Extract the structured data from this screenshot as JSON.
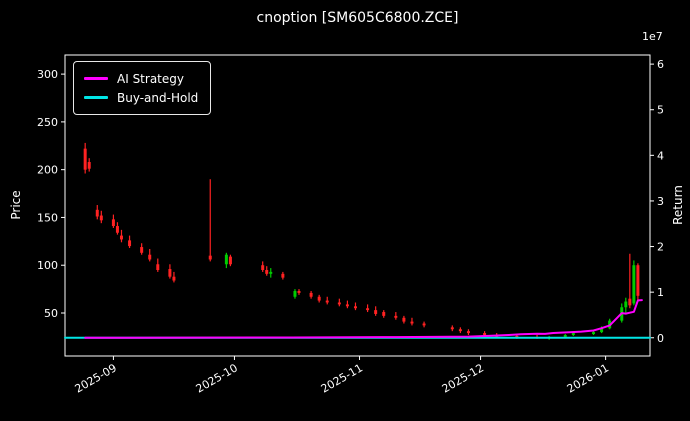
{
  "window": {
    "title": "cnoption [SM605C6800.ZCE]"
  },
  "legend": {
    "items": [
      {
        "label": "AI Strategy",
        "color": "#ff00ff"
      },
      {
        "label": "Buy-and-Hold",
        "color": "#00e5e5"
      }
    ]
  },
  "chart_data": {
    "type": "candlestick",
    "title": "cnoption [SM605C6800.ZCE]",
    "background": "#000000",
    "text_color": "#ffffff",
    "ylabel_left": "Price",
    "ylabel_right": "Return",
    "right_axis_offset_text": "1e7",
    "grid": false,
    "legend_position": "upper-left",
    "x_range": [
      "2025-08-20",
      "2026-01-12"
    ],
    "y_left_range": [
      5,
      320
    ],
    "y_right_range": [
      -4000000,
      62000000
    ],
    "y_left_ticks": [
      50,
      100,
      150,
      200,
      250,
      300
    ],
    "y_right_ticks": [
      0,
      1,
      2,
      3,
      4,
      5,
      6
    ],
    "y_right_tick_scale": 10000000,
    "x_ticks": [
      {
        "label": "2025-09",
        "date": "2025-09-01"
      },
      {
        "label": "2025-10",
        "date": "2025-10-01"
      },
      {
        "label": "2025-11",
        "date": "2025-11-01"
      },
      {
        "label": "2025-12",
        "date": "2025-12-01"
      },
      {
        "label": "2026-01",
        "date": "2026-01-01"
      }
    ],
    "colors": {
      "up": "#00cc00",
      "down": "#ff2222",
      "ai": "#ff00ff",
      "bh": "#00e5e5"
    },
    "candles": [
      [
        "2025-08-25",
        222,
        228,
        196,
        200
      ],
      [
        "2025-08-26",
        208,
        212,
        198,
        201
      ],
      [
        "2025-08-28",
        158,
        163,
        148,
        151
      ],
      [
        "2025-08-29",
        152,
        157,
        144,
        147
      ],
      [
        "2025-09-01",
        148,
        153,
        139,
        141
      ],
      [
        "2025-09-02",
        141,
        145,
        132,
        134
      ],
      [
        "2025-09-03",
        131,
        137,
        124,
        127
      ],
      [
        "2025-09-05",
        126,
        131,
        118,
        120
      ],
      [
        "2025-09-08",
        119,
        123,
        111,
        113
      ],
      [
        "2025-09-10",
        111,
        117,
        104,
        106
      ],
      [
        "2025-09-12",
        101,
        107,
        93,
        95
      ],
      [
        "2025-09-15",
        96,
        101,
        86,
        88
      ],
      [
        "2025-09-16",
        88,
        93,
        82,
        84
      ],
      [
        "2025-09-25",
        110,
        190,
        104,
        106
      ],
      [
        "2025-09-29",
        101,
        113,
        97,
        111
      ],
      [
        "2025-09-30",
        109,
        111,
        99,
        101
      ],
      [
        "2025-10-08",
        100,
        104,
        93,
        95
      ],
      [
        "2025-10-09",
        95,
        99,
        89,
        91
      ],
      [
        "2025-10-10",
        91,
        97,
        87,
        93
      ],
      [
        "2025-10-13",
        91,
        93,
        85,
        87
      ],
      [
        "2025-10-16",
        67,
        75,
        65,
        73
      ],
      [
        "2025-10-17",
        73,
        75,
        69,
        71
      ],
      [
        "2025-10-20",
        71,
        73,
        65,
        67
      ],
      [
        "2025-10-22",
        67,
        69,
        61,
        63
      ],
      [
        "2025-10-24",
        63,
        67,
        59,
        61
      ],
      [
        "2025-10-27",
        61,
        65,
        57,
        59
      ],
      [
        "2025-10-29",
        59,
        63,
        55,
        57
      ],
      [
        "2025-10-31",
        57,
        61,
        53,
        55
      ],
      [
        "2025-11-03",
        55,
        59,
        51,
        53
      ],
      [
        "2025-11-05",
        53,
        57,
        47,
        49
      ],
      [
        "2025-11-07",
        51,
        53,
        45,
        47
      ],
      [
        "2025-11-10",
        47,
        51,
        43,
        45
      ],
      [
        "2025-11-12",
        45,
        47,
        39,
        41
      ],
      [
        "2025-11-14",
        41,
        45,
        37,
        39
      ],
      [
        "2025-11-17",
        39,
        41,
        35,
        37
      ],
      [
        "2025-11-24",
        35,
        37,
        31,
        33
      ],
      [
        "2025-11-26",
        33,
        35,
        29,
        31
      ],
      [
        "2025-11-28",
        31,
        33,
        27,
        29
      ],
      [
        "2025-12-02",
        29,
        31,
        25,
        27
      ],
      [
        "2025-12-05",
        27,
        29,
        24,
        25
      ],
      [
        "2025-12-10",
        26,
        28,
        23,
        24
      ],
      [
        "2025-12-15",
        25,
        27,
        23,
        24
      ],
      [
        "2025-12-18",
        24,
        26,
        22,
        25
      ],
      [
        "2025-12-22",
        25,
        28,
        24,
        27
      ],
      [
        "2025-12-24",
        27,
        30,
        26,
        29
      ],
      [
        "2025-12-29",
        28,
        32,
        27,
        30
      ],
      [
        "2025-12-31",
        30,
        36,
        29,
        34
      ],
      [
        "2026-01-02",
        34,
        44,
        33,
        42
      ],
      [
        "2026-01-05",
        42,
        60,
        40,
        56
      ],
      [
        "2026-01-06",
        56,
        66,
        50,
        62
      ],
      [
        "2026-01-07",
        65,
        112,
        55,
        58
      ],
      [
        "2026-01-08",
        60,
        105,
        58,
        100
      ],
      [
        "2026-01-09",
        100,
        102,
        62,
        68
      ]
    ],
    "series": [
      {
        "name": "AI Strategy",
        "axis": "right",
        "color": "#ff00ff",
        "points": [
          [
            "2025-08-25",
            0
          ],
          [
            "2025-10-15",
            50000
          ],
          [
            "2025-11-10",
            150000
          ],
          [
            "2025-11-28",
            250000
          ],
          [
            "2025-12-03",
            400000
          ],
          [
            "2025-12-08",
            600000
          ],
          [
            "2025-12-11",
            750000
          ],
          [
            "2025-12-15",
            900000
          ],
          [
            "2025-12-17",
            850000
          ],
          [
            "2025-12-19",
            1050000
          ],
          [
            "2025-12-23",
            1200000
          ],
          [
            "2025-12-26",
            1350000
          ],
          [
            "2025-12-29",
            1600000
          ],
          [
            "2025-12-31",
            2100000
          ],
          [
            "2026-01-02",
            2700000
          ],
          [
            "2026-01-05",
            5400000
          ],
          [
            "2026-01-06",
            5300000
          ],
          [
            "2026-01-07",
            5500000
          ],
          [
            "2026-01-08",
            5700000
          ],
          [
            "2026-01-09",
            8200000
          ],
          [
            "2026-01-10",
            8250000
          ]
        ]
      },
      {
        "name": "Buy-and-Hold",
        "axis": "right",
        "color": "#00e5e5",
        "points": [
          [
            "2025-08-20",
            0
          ],
          [
            "2026-01-12",
            0
          ]
        ]
      }
    ]
  }
}
